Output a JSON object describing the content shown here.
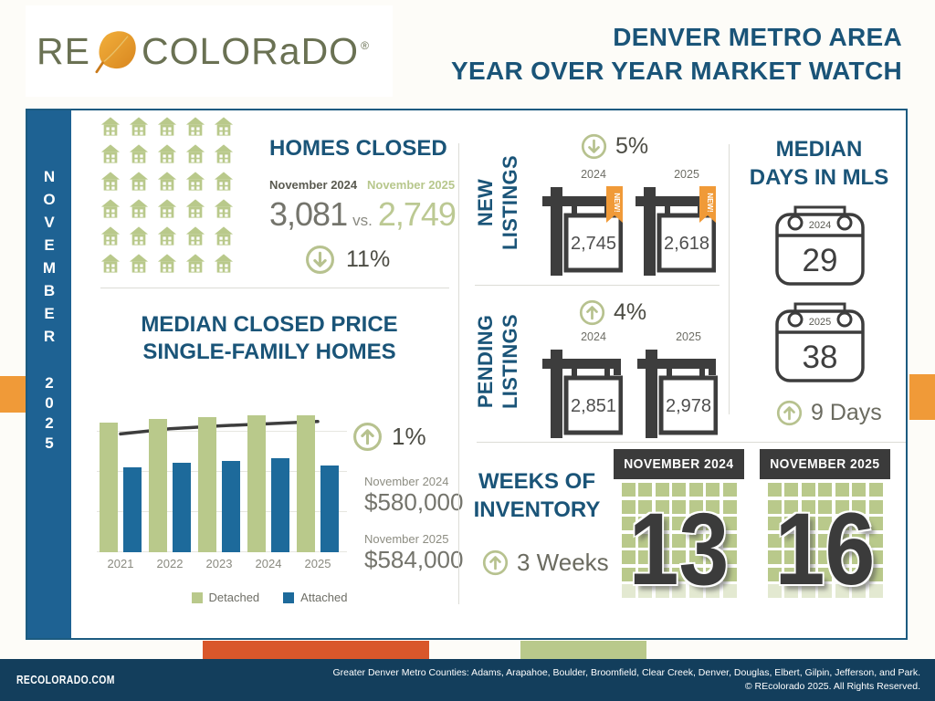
{
  "brand": {
    "re": "RE",
    "colorado": "COLORaDO",
    "registered": "®"
  },
  "header": {
    "line1": "DENVER METRO AREA",
    "line2": "YEAR OVER YEAR MARKET WATCH"
  },
  "sidebar": {
    "month": "NOVEMBER",
    "year": "2025"
  },
  "homes_closed": {
    "title": "HOMES CLOSED",
    "label_2024": "November 2024",
    "label_2025": "November 2025",
    "value_2024": "3,081",
    "vs": "vs.",
    "value_2025": "2,749",
    "change": "11%",
    "direction": "down",
    "icon_grid": {
      "rows": 6,
      "cols": 5
    }
  },
  "median_price": {
    "title_line1": "MEDIAN CLOSED PRICE",
    "title_line2": "SINGLE-FAMILY HOMES",
    "change": "1%",
    "direction": "up",
    "label_2024": "November 2024",
    "value_2024": "$580,000",
    "label_2025": "November 2025",
    "value_2025": "$584,000",
    "legend": [
      {
        "label": "Detached",
        "color": "#b9c98b"
      },
      {
        "label": "Attached",
        "color": "#1d6a9b"
      }
    ]
  },
  "chart_data": {
    "type": "bar",
    "title": "MEDIAN CLOSED PRICE SINGLE-FAMILY HOMES",
    "categories": [
      "2021",
      "2022",
      "2023",
      "2024",
      "2025"
    ],
    "series": [
      {
        "name": "Detached",
        "type": "bar",
        "color": "#b9c98b",
        "values": [
          89,
          91,
          92.5,
          94,
          93.8
        ]
      },
      {
        "name": "Attached",
        "type": "bar",
        "color": "#1d6a9b",
        "values": [
          58,
          61,
          62.5,
          64.5,
          59.5
        ]
      },
      {
        "name": "Trend",
        "type": "line",
        "color": "#3d3d3d",
        "values": [
          81,
          84.5,
          86.5,
          88,
          89.5
        ]
      }
    ],
    "units": "relative height, % of chart scale (y-axis unlabeled in source)",
    "xlabel": "",
    "ylabel": "",
    "ylim": [
      0,
      110
    ],
    "grid": true,
    "legend_position": "bottom"
  },
  "new_listings": {
    "label_line1": "NEW",
    "label_line2": "LISTINGS",
    "change": "5%",
    "direction": "down",
    "items": [
      {
        "year": "2024",
        "value": "2,745",
        "ribbon": "NEW!"
      },
      {
        "year": "2025",
        "value": "2,618",
        "ribbon": "NEW!"
      }
    ]
  },
  "pending_listings": {
    "label_line1": "PENDING",
    "label_line2": "LISTINGS",
    "change": "4%",
    "direction": "up",
    "items": [
      {
        "year": "2024",
        "value": "2,851"
      },
      {
        "year": "2025",
        "value": "2,978"
      }
    ]
  },
  "median_days": {
    "title_line1": "MEDIAN",
    "title_line2": "DAYS IN MLS",
    "change": "9 Days",
    "direction": "up",
    "items": [
      {
        "year": "2024",
        "value": "29"
      },
      {
        "year": "2025",
        "value": "38"
      }
    ]
  },
  "weeks_inventory": {
    "title_line1": "WEEKS OF",
    "title_line2": "INVENTORY",
    "change": "3 Weeks",
    "direction": "up",
    "grid": {
      "rows": 7,
      "cols": 7
    },
    "items": [
      {
        "header": "NOVEMBER 2024",
        "value": "13"
      },
      {
        "header": "NOVEMBER 2025",
        "value": "16"
      }
    ]
  },
  "footer": {
    "site": "RECOLORADO.COM",
    "line1": "Greater Denver Metro Counties: Adams, Arapahoe, Boulder, Broomfield, Clear Creek, Denver, Douglas, Elbert, Gilpin, Jefferson, and Park.",
    "line2": "© REcolorado 2025. All Rights Reserved."
  },
  "colors": {
    "heading_blue": "#1a5478",
    "sidebar_blue": "#1e6293",
    "bar_blue": "#1d6a9b",
    "sage_green": "#b9c98b",
    "charcoal": "#3b3b3b",
    "orange_tab": "#f09a38",
    "orange_strip": "#d9572b",
    "footer_navy": "#133e5c"
  }
}
